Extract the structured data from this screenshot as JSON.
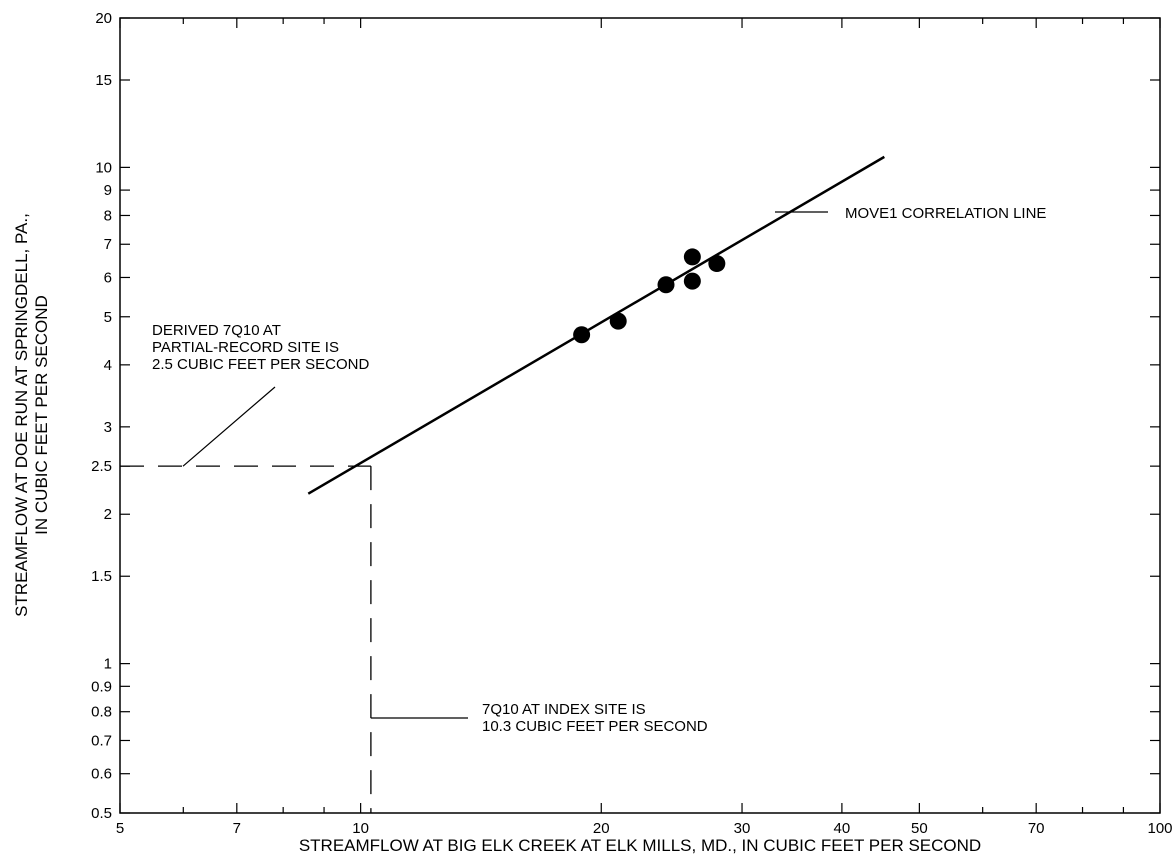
{
  "chart_data": {
    "type": "scatter",
    "x_scale": "log",
    "y_scale": "log",
    "xlim": [
      5,
      100
    ],
    "ylim": [
      0.5,
      20
    ],
    "grid": false,
    "xlabel": "STREAMFLOW AT BIG ELK CREEK AT ELK MILLS, MD., IN CUBIC FEET PER SECOND",
    "ylabel_lines": [
      "STREAMFLOW AT DOE RUN AT SPRINGDELL, PA.,",
      "IN CUBIC FEET PER SECOND"
    ],
    "x_ticks_major": [
      5,
      7,
      10,
      20,
      30,
      40,
      50,
      70,
      100
    ],
    "x_tick_labels": [
      "5",
      "7",
      "10",
      "20",
      "30",
      "40",
      "50",
      "70",
      "100"
    ],
    "x_ticks_minor": [
      6,
      8,
      9,
      60,
      80,
      90
    ],
    "y_ticks_major": [
      0.5,
      0.6,
      0.7,
      0.8,
      0.9,
      1,
      1.5,
      2,
      2.5,
      3,
      4,
      5,
      6,
      7,
      8,
      9,
      10,
      15,
      20
    ],
    "y_tick_labels": [
      "0.5",
      "0.6",
      "0.7",
      "0.8",
      "0.9",
      "1",
      "1.5",
      "2",
      "2.5",
      "3",
      "4",
      "5",
      "6",
      "7",
      "8",
      "9",
      "10",
      "15",
      "20"
    ],
    "points": [
      {
        "x": 18.9,
        "y": 4.6
      },
      {
        "x": 21.0,
        "y": 4.9
      },
      {
        "x": 24.1,
        "y": 5.8
      },
      {
        "x": 26.0,
        "y": 5.9
      },
      {
        "x": 26.0,
        "y": 6.6
      },
      {
        "x": 27.9,
        "y": 6.4
      }
    ],
    "correlation_line": {
      "x": [
        8.6,
        45.2
      ],
      "y": [
        2.2,
        10.5
      ]
    },
    "derived_7q10": {
      "x": 10.3,
      "y": 2.5
    },
    "annotations": {
      "move1": [
        "MOVE1 CORRELATION LINE"
      ],
      "derived": [
        "DERIVED 7Q10 AT",
        "PARTIAL-RECORD SITE IS",
        "2.5 CUBIC FEET PER SECOND"
      ],
      "index": [
        "7Q10 AT INDEX SITE IS",
        "10.3 CUBIC FEET PER SECOND"
      ]
    },
    "colors": {
      "ink": "#000000",
      "background": "#ffffff"
    }
  }
}
